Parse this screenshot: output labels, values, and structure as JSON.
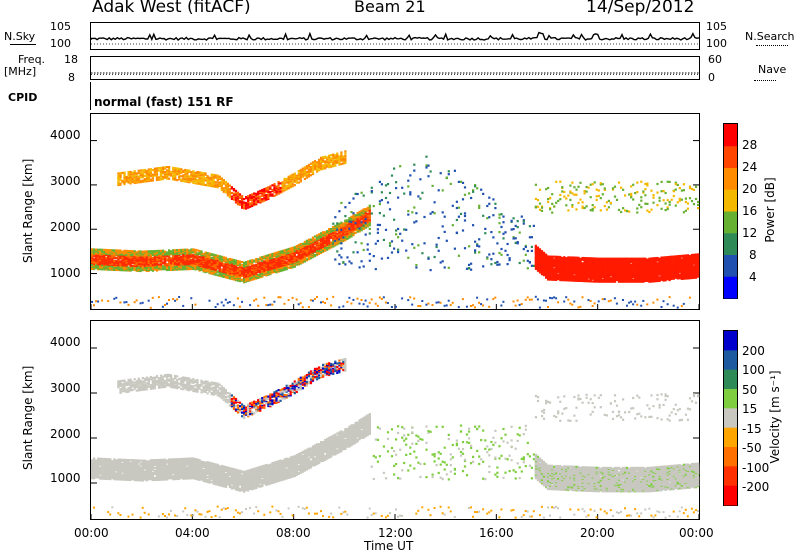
{
  "header": {
    "radar": "Adak West (fitACF)",
    "beam": "Beam 21",
    "date": "14/Sep/2012"
  },
  "nsky": {
    "label": "N.Sky",
    "ticks": [
      "10^5",
      "10^0"
    ],
    "right_label": "N.Search",
    "right_ticks": [
      "10^5",
      "10^0"
    ]
  },
  "freq": {
    "label_line1": "Freq.",
    "label_line2": "[MHz]",
    "ticks": [
      "18",
      "8"
    ],
    "right_label": "Nave",
    "right_ticks": [
      "60",
      "0"
    ]
  },
  "cpid": {
    "label": "CPID",
    "value": "normal (fast) 151 RF"
  },
  "power_panel": {
    "ylabel": "Slant Range [km]",
    "yticks": [
      "4000",
      "3000",
      "2000",
      "1000"
    ],
    "colorbar_label": "Power [dB]",
    "colorbar_ticks": [
      "28",
      "24",
      "20",
      "16",
      "12",
      "8",
      "4"
    ],
    "colors": [
      "#0000ff",
      "#2050b0",
      "#2e8b57",
      "#66b032",
      "#f5b800",
      "#ff8c00",
      "#ff4500",
      "#ff0000"
    ]
  },
  "velocity_panel": {
    "ylabel": "Slant Range [km]",
    "yticks": [
      "4000",
      "3000",
      "2000",
      "1000"
    ],
    "colorbar_label": "Velocity [m s⁻¹]",
    "colorbar_ticks": [
      "200",
      "100",
      "50",
      "15",
      "-15",
      "-50",
      "-100",
      "-200"
    ],
    "colors": [
      "#0000cd",
      "#1e5aa0",
      "#2e8b57",
      "#7fce3f",
      "#c8c8c0",
      "#ffa500",
      "#ff7000",
      "#ff3000",
      "#ff0000"
    ]
  },
  "xaxis": {
    "label": "Time UT",
    "ticks": [
      "00:00",
      "04:00",
      "08:00",
      "12:00",
      "16:00",
      "20:00",
      "00:00"
    ]
  },
  "chart_data": [
    {
      "type": "heatmap",
      "title": "Power",
      "xlabel": "Time UT",
      "ylabel": "Slant Range [km]",
      "xlim": [
        0,
        24
      ],
      "ylim": [
        200,
        4600
      ],
      "colorbar": {
        "label": "Power [dB]",
        "range": [
          0,
          32
        ]
      },
      "bands": [
        {
          "name": "main-echo",
          "t": [
            0,
            2,
            4,
            6,
            8,
            10,
            11
          ],
          "range_km": [
            1350,
            1300,
            1350,
            1050,
            1400,
            2000,
            2350
          ],
          "power_db": 26
        },
        {
          "name": "upper-echo",
          "t": [
            1,
            3,
            5,
            6,
            7,
            8,
            9,
            10
          ],
          "range_km": [
            3150,
            3300,
            3100,
            2600,
            2850,
            3150,
            3500,
            3650
          ],
          "power_db": 20
        },
        {
          "name": "late-echo",
          "t": [
            17.5,
            18,
            20,
            22,
            24
          ],
          "range_km": [
            1400,
            1150,
            1100,
            1100,
            1200
          ],
          "power_db": 28
        }
      ]
    },
    {
      "type": "heatmap",
      "title": "Velocity",
      "xlabel": "Time UT",
      "ylabel": "Slant Range [km]",
      "xlim": [
        0,
        24
      ],
      "ylim": [
        200,
        4600
      ],
      "colorbar": {
        "label": "Velocity [m s⁻¹]",
        "range": [
          -250,
          250
        ]
      }
    }
  ]
}
